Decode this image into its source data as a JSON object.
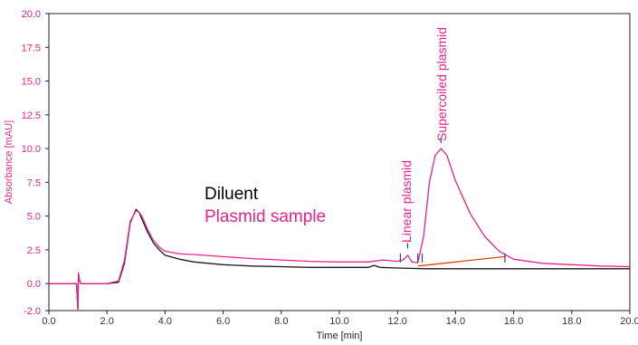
{
  "chart_data": {
    "type": "line",
    "xlabel": "Time [min]",
    "ylabel": "Absorbance [mAU]",
    "xlim": [
      0,
      20
    ],
    "ylim": [
      -2,
      20
    ],
    "x_ticks": [
      "0.0",
      "2.0",
      "4.0",
      "6.0",
      "8.0",
      "10.0",
      "12.0",
      "14.0",
      "16.0",
      "18.0",
      "20.0"
    ],
    "y_ticks": [
      "-2.0",
      "0.0",
      "2.5",
      "5.0",
      "7.5",
      "10.0",
      "12.5",
      "15.0",
      "17.5",
      "20.0"
    ],
    "grid": false,
    "legend": {
      "placement": "center",
      "entries": [
        {
          "label": "Diluent",
          "color": "#000000"
        },
        {
          "label": "Plasmid sample",
          "color": "#e8228a"
        }
      ]
    },
    "annotations": [
      {
        "text": "Linear plasmid",
        "x": 12.3,
        "color": "#e8228a"
      },
      {
        "text": "Supercoiled plasmid",
        "x": 13.5,
        "color": "#e8228a"
      }
    ],
    "series": [
      {
        "name": "Diluent",
        "color": "#1a1a1a",
        "x": [
          0.0,
          0.5,
          0.95,
          1.0,
          1.02,
          1.05,
          1.08,
          1.1,
          1.2,
          1.5,
          2.0,
          2.4,
          2.6,
          2.8,
          3.0,
          3.1,
          3.2,
          3.4,
          3.6,
          3.8,
          4.0,
          4.5,
          5.0,
          6.0,
          7.0,
          8.0,
          9.0,
          10.0,
          11.0,
          11.2,
          11.4,
          12.0,
          13.0,
          14.0,
          15.0,
          16.0,
          17.0,
          18.0,
          19.0,
          20.0
        ],
        "y": [
          0.0,
          0.0,
          0.0,
          -1.9,
          0.7,
          0.3,
          0.1,
          0.0,
          0.0,
          0.0,
          0.0,
          0.1,
          1.5,
          4.5,
          5.5,
          5.3,
          4.8,
          3.8,
          3.0,
          2.5,
          2.1,
          1.8,
          1.6,
          1.4,
          1.3,
          1.25,
          1.2,
          1.2,
          1.2,
          1.35,
          1.2,
          1.15,
          1.1,
          1.1,
          1.1,
          1.1,
          1.1,
          1.1,
          1.1,
          1.1
        ]
      },
      {
        "name": "Plasmid sample",
        "color": "#e8228a",
        "x": [
          0.0,
          0.5,
          0.95,
          1.0,
          1.02,
          1.05,
          1.08,
          1.1,
          1.2,
          1.5,
          2.0,
          2.4,
          2.6,
          2.8,
          3.0,
          3.1,
          3.2,
          3.4,
          3.6,
          3.8,
          4.0,
          4.5,
          5.0,
          6.0,
          7.0,
          8.0,
          9.0,
          10.0,
          11.0,
          11.5,
          12.0,
          12.2,
          12.35,
          12.5,
          12.7,
          12.9,
          13.1,
          13.3,
          13.5,
          13.7,
          14.0,
          14.5,
          15.0,
          15.5,
          16.0,
          17.0,
          18.0,
          19.0,
          20.0
        ],
        "y": [
          0.0,
          0.0,
          0.0,
          -1.9,
          0.8,
          0.3,
          0.1,
          0.0,
          0.0,
          0.0,
          0.0,
          0.2,
          1.7,
          4.6,
          5.4,
          5.3,
          5.0,
          4.0,
          3.2,
          2.7,
          2.4,
          2.2,
          2.15,
          2.0,
          1.85,
          1.75,
          1.65,
          1.6,
          1.6,
          1.75,
          1.65,
          1.75,
          2.1,
          1.6,
          1.55,
          3.5,
          7.5,
          9.5,
          10.0,
          9.5,
          7.6,
          5.2,
          3.5,
          2.4,
          1.8,
          1.5,
          1.4,
          1.3,
          1.25
        ]
      }
    ],
    "baselines": [
      {
        "x": [
          12.7,
          15.7
        ],
        "y": [
          1.3,
          2.0
        ],
        "color": "#e04010"
      }
    ],
    "peak_markers": {
      "color": "#2040c0",
      "x": [
        12.1,
        12.7,
        12.85,
        15.7
      ],
      "apex_x": [
        12.35,
        13.5
      ]
    }
  }
}
